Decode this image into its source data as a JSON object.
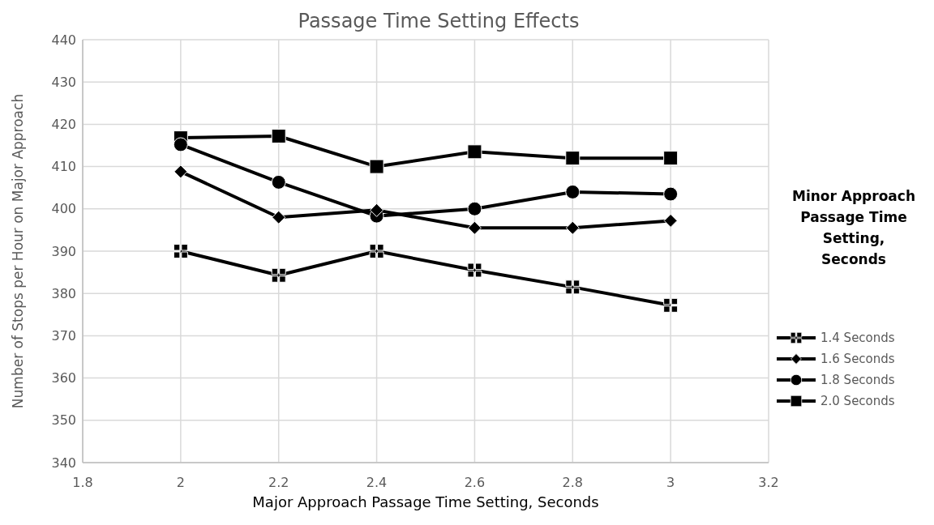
{
  "chart_data": {
    "type": "line",
    "title": "Passage Time Setting Effects",
    "xlabel": "Major Approach Passage Time Setting, Seconds",
    "ylabel": "Number of Stops per Hour on Major Approach",
    "legend_title": "Minor Approach Passage Time Setting, Seconds",
    "x": [
      2,
      2.2,
      2.4,
      2.6,
      2.8,
      3
    ],
    "series": [
      {
        "name": "1.4 Seconds",
        "color": "#000000",
        "marker": "cross",
        "values": [
          390,
          384.3,
          390,
          385.5,
          381.5,
          377.2
        ]
      },
      {
        "name": "1.6 Seconds",
        "color": "#000000",
        "marker": "diamond",
        "values": [
          408.8,
          398,
          399.7,
          395.5,
          395.5,
          397.2
        ]
      },
      {
        "name": "1.8 Seconds",
        "color": "#000000",
        "marker": "circle",
        "values": [
          415.2,
          406.3,
          398.3,
          400,
          404,
          403.5
        ]
      },
      {
        "name": "2.0 Seconds",
        "color": "#000000",
        "marker": "square",
        "values": [
          416.8,
          417.2,
          410,
          413.5,
          412,
          412
        ]
      }
    ],
    "xlim": [
      1.8,
      3.2
    ],
    "xticks": [
      1.8,
      2,
      2.2,
      2.4,
      2.6,
      2.8,
      3,
      3.2
    ],
    "ylim": [
      340,
      440
    ],
    "yticks": [
      340,
      350,
      360,
      370,
      380,
      390,
      400,
      410,
      420,
      430,
      440
    ],
    "grid": true,
    "legend": "right",
    "line_style": "solid"
  }
}
